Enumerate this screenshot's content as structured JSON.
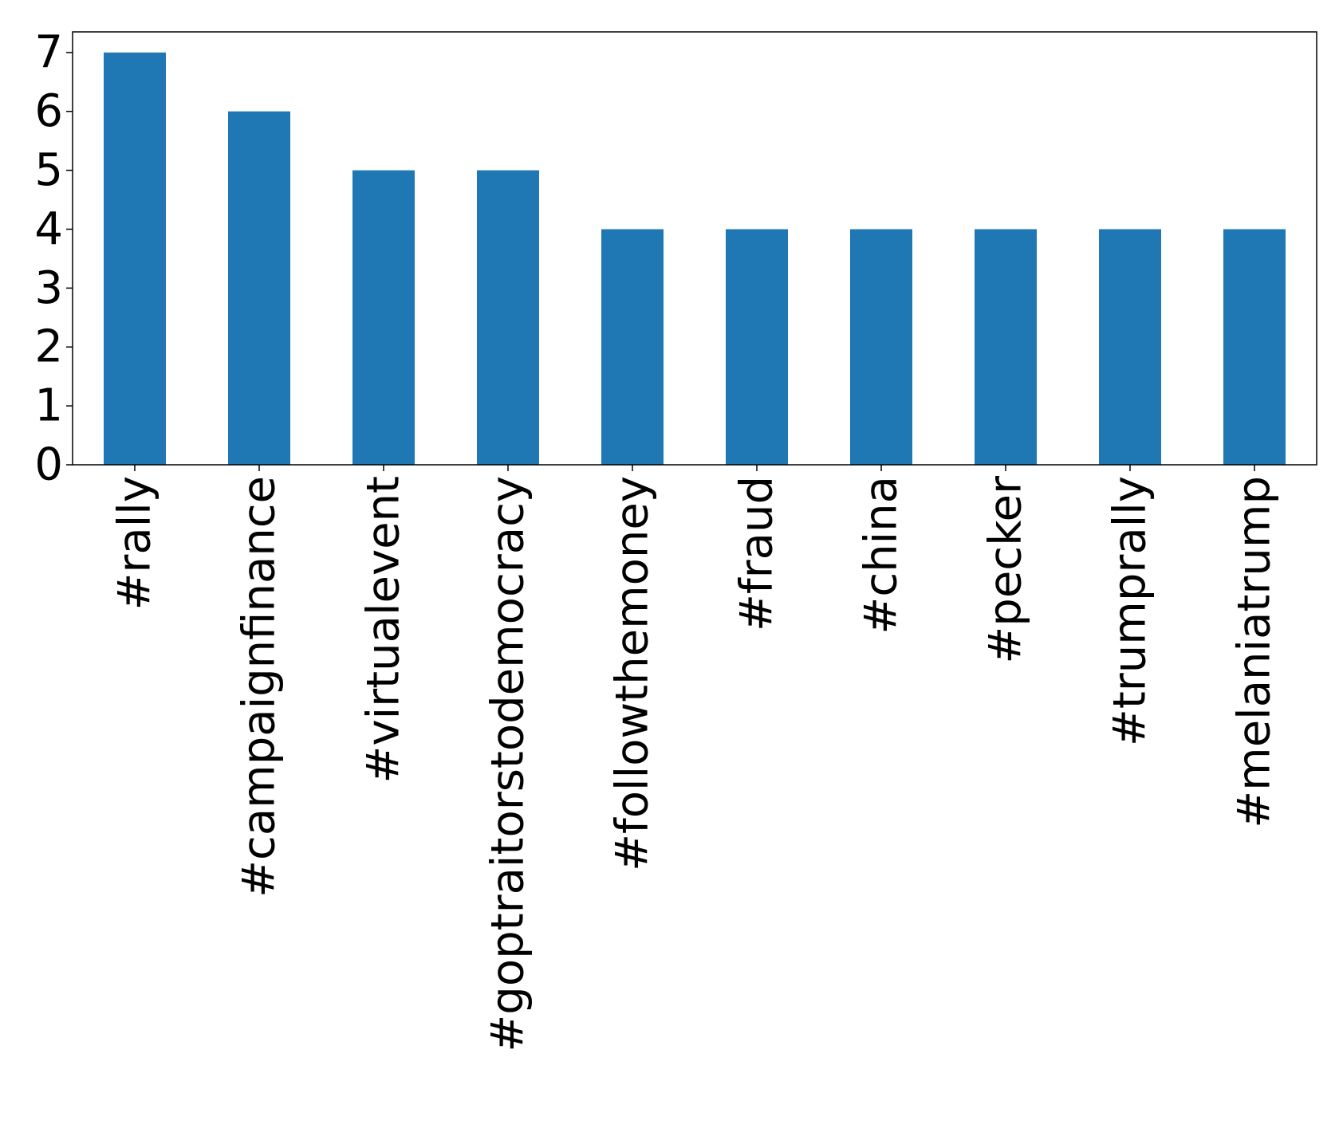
{
  "chart_data": {
    "type": "bar",
    "categories": [
      "#rally",
      "#campaignfinance",
      "#virtualevent",
      "#goptraitorstodemocracy",
      "#followthemoney",
      "#fraud",
      "#china",
      "#pecker",
      "#trumprally",
      "#melaniatrump"
    ],
    "values": [
      7,
      6,
      5,
      5,
      4,
      4,
      4,
      4,
      4,
      4
    ],
    "title": "",
    "xlabel": "",
    "ylabel": "",
    "ylim": [
      0,
      7.35
    ],
    "yticks": [
      0,
      1,
      2,
      3,
      4,
      5,
      6,
      7
    ],
    "grid": false,
    "legend": "none",
    "colors": {
      "bar": "#1f77b4",
      "axis": "#000000"
    }
  }
}
